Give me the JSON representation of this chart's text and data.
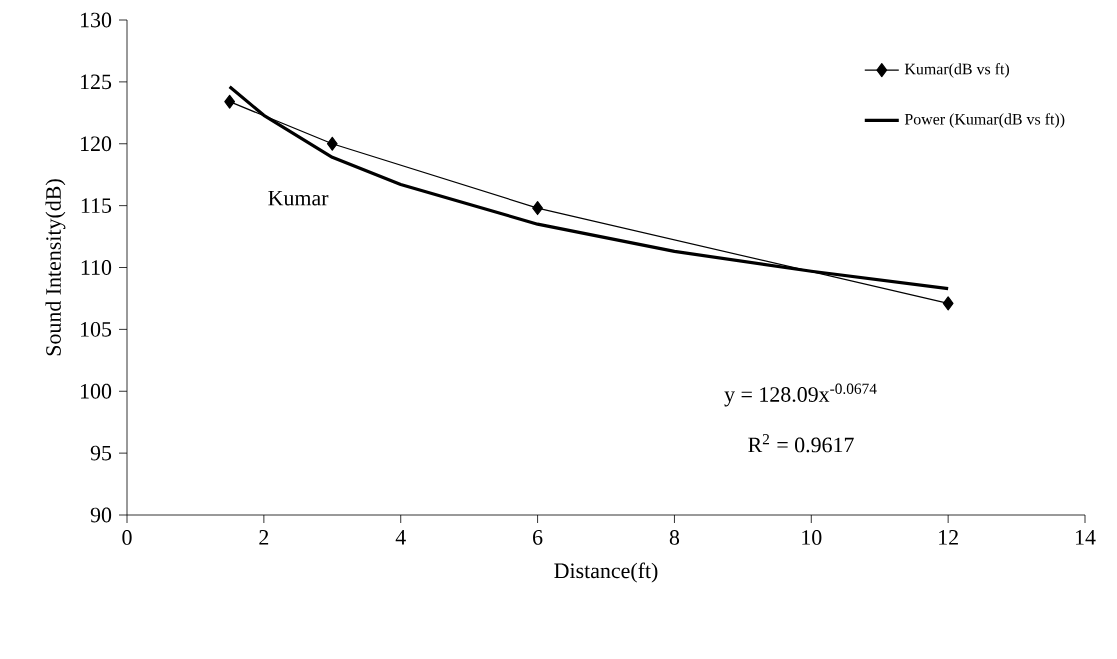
{
  "chart_data": {
    "type": "line",
    "xlabel": "Distance(ft)",
    "ylabel": "Sound Intensity(dB)",
    "series": [
      {
        "name": "Kumar(dB vs ft)",
        "color": "#000000",
        "marker": "diamond",
        "x": [
          1.5,
          3,
          6,
          12
        ],
        "values": [
          123.4,
          120.0,
          114.8,
          107.1
        ]
      },
      {
        "name": "Power (Kumar(dB vs ft))",
        "color": "#000000",
        "marker": "none",
        "x": [
          1.5,
          2,
          3,
          4,
          6,
          8,
          10,
          12
        ],
        "values": [
          124.6,
          122.3,
          118.9,
          116.7,
          113.5,
          111.3,
          109.7,
          108.3
        ]
      }
    ],
    "xlim": [
      0,
      14
    ],
    "xticks": [
      0,
      2,
      4,
      6,
      8,
      10,
      12,
      14
    ],
    "ylim": [
      90,
      130
    ],
    "yticks": [
      90,
      95,
      100,
      105,
      110,
      115,
      120,
      125,
      130
    ],
    "grid": false,
    "legend": "top right",
    "annotations": [
      "Kumar",
      "y = 128.09x$^{-0.0674}$",
      "R$^{2}$ = 0.9617"
    ]
  }
}
